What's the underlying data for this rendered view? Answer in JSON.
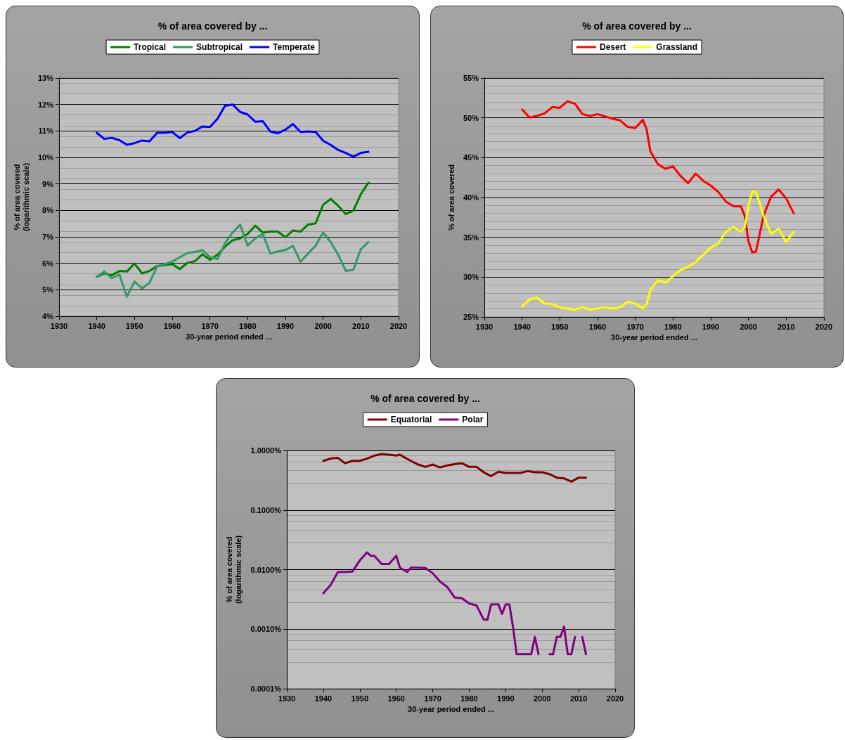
{
  "chart_data": [
    {
      "type": "line",
      "title": "% of area covered by ...",
      "xlabel": "30-year period ended ...",
      "ylabel": "% of area covered\n(logarithmic scale)",
      "xlim": [
        1930,
        2020
      ],
      "xticks": [
        1930,
        1940,
        1950,
        1960,
        1970,
        1980,
        1990,
        2000,
        2010,
        2020
      ],
      "ylim": [
        4,
        13
      ],
      "yticks": [
        {
          "value": 4,
          "label": "4%"
        },
        {
          "value": 5,
          "label": "5%"
        },
        {
          "value": 6,
          "label": "6%"
        },
        {
          "value": 7,
          "label": "7%"
        },
        {
          "value": 8,
          "label": "8%"
        },
        {
          "value": 9,
          "label": "9%"
        },
        {
          "value": 10,
          "label": "10%"
        },
        {
          "value": 11,
          "label": "11%"
        },
        {
          "value": 12,
          "label": "12%"
        },
        {
          "value": 13,
          "label": "13%"
        }
      ],
      "grid": "y",
      "legend": "top",
      "marker": "none",
      "line_style": "solid",
      "x": [
        1940,
        1942,
        1944,
        1946,
        1948,
        1950,
        1952,
        1954,
        1956,
        1958,
        1960,
        1962,
        1964,
        1966,
        1968,
        1970,
        1972,
        1974,
        1976,
        1978,
        1980,
        1982,
        1984,
        1986,
        1988,
        1990,
        1992,
        1994,
        1996,
        1998,
        2000,
        2002,
        2004,
        2006,
        2008,
        2010,
        2012
      ],
      "series": [
        {
          "name": "Tropical",
          "color": "#008000",
          "values": [
            5.49,
            5.62,
            5.55,
            5.71,
            5.69,
            5.99,
            5.62,
            5.71,
            5.9,
            5.93,
            5.97,
            5.78,
            6.01,
            6.08,
            6.34,
            6.13,
            6.32,
            6.63,
            6.87,
            6.94,
            7.11,
            7.42,
            7.16,
            7.2,
            7.2,
            6.98,
            7.24,
            7.2,
            7.46,
            7.51,
            8.21,
            8.43,
            8.17,
            7.86,
            7.99,
            8.61,
            9.05
          ]
        },
        {
          "name": "Subtropical",
          "color": "#339966",
          "values": [
            5.49,
            5.69,
            5.44,
            5.57,
            4.74,
            5.31,
            5.05,
            5.27,
            5.88,
            5.97,
            6.06,
            6.23,
            6.39,
            6.43,
            6.5,
            6.23,
            6.16,
            6.76,
            7.16,
            7.46,
            6.67,
            6.94,
            7.11,
            6.37,
            6.45,
            6.5,
            6.66,
            6.06,
            6.37,
            6.67,
            7.16,
            6.8,
            6.32,
            5.71,
            5.75,
            6.54,
            6.8
          ]
        },
        {
          "name": "Temperate",
          "color": "#0000ff",
          "values": [
            10.93,
            10.7,
            10.74,
            10.65,
            10.48,
            10.54,
            10.64,
            10.61,
            10.93,
            10.93,
            10.96,
            10.73,
            10.94,
            11.0,
            11.17,
            11.15,
            11.46,
            11.95,
            12.0,
            11.72,
            11.62,
            11.35,
            11.37,
            10.98,
            10.91,
            11.05,
            11.26,
            10.96,
            10.98,
            10.96,
            10.63,
            10.47,
            10.28,
            10.17,
            10.03,
            10.17,
            10.21
          ]
        }
      ]
    },
    {
      "type": "line",
      "title": "% of area covered by ...",
      "xlabel": "30-year period ended ...",
      "ylabel": "% of area covered",
      "xlim": [
        1930,
        2020
      ],
      "xticks": [
        1930,
        1940,
        1950,
        1960,
        1970,
        1980,
        1990,
        2000,
        2010,
        2020
      ],
      "ylim": [
        25,
        55
      ],
      "yticks": [
        {
          "value": 25,
          "label": "25%"
        },
        {
          "value": 30,
          "label": "30%"
        },
        {
          "value": 35,
          "label": "35%"
        },
        {
          "value": 40,
          "label": "40%"
        },
        {
          "value": 45,
          "label": "45%"
        },
        {
          "value": 50,
          "label": "50%"
        },
        {
          "value": 55,
          "label": "55%"
        }
      ],
      "grid": "y",
      "legend": "top",
      "marker": "none",
      "line_style": "solid",
      "x": [
        1940,
        1942,
        1944,
        1946,
        1948,
        1950,
        1952,
        1954,
        1956,
        1958,
        1960,
        1962,
        1964,
        1966,
        1968,
        1970,
        1972,
        1973,
        1974,
        1976,
        1978,
        1980,
        1982,
        1984,
        1986,
        1988,
        1990,
        1992,
        1994,
        1996,
        1998,
        1999,
        2000,
        2001,
        2002,
        2004,
        2006,
        2008,
        2010,
        2012
      ],
      "series": [
        {
          "name": "Desert",
          "color": "#ff0000",
          "values": [
            51.05,
            50.03,
            50.26,
            50.56,
            51.35,
            51.26,
            52.08,
            51.78,
            50.47,
            50.23,
            50.47,
            50.18,
            49.88,
            49.68,
            48.86,
            48.71,
            49.74,
            48.57,
            45.79,
            44.18,
            43.6,
            43.9,
            42.7,
            41.8,
            43.0,
            42.1,
            41.5,
            40.7,
            39.5,
            38.9,
            38.9,
            37.7,
            34.5,
            33.1,
            33.2,
            37.7,
            40.1,
            41.0,
            39.9,
            38.0
          ]
        },
        {
          "name": "Grassland",
          "color": "#ffff00",
          "values": [
            26.3,
            27.2,
            27.4,
            26.7,
            26.6,
            26.2,
            26.05,
            25.9,
            26.2,
            25.9,
            26.05,
            26.2,
            26.05,
            26.2,
            26.9,
            26.7,
            26.05,
            26.6,
            28.4,
            29.6,
            29.3,
            30.1,
            30.9,
            31.3,
            31.9,
            32.8,
            33.7,
            34.2,
            35.7,
            36.3,
            35.7,
            36.3,
            38.9,
            40.7,
            40.7,
            37.7,
            35.4,
            36.1,
            34.4,
            35.7
          ]
        }
      ]
    },
    {
      "type": "line",
      "title": "% of area covered by ...",
      "xlabel": "30-year period ended ...",
      "ylabel": "% of area covered\n(logarithmic scale)",
      "xlim": [
        1930,
        2020
      ],
      "xticks": [
        1930,
        1940,
        1950,
        1960,
        1970,
        1980,
        1990,
        2000,
        2010,
        2020
      ],
      "ylim": [
        0.0001,
        1
      ],
      "yticks": [
        {
          "value": 0.0001,
          "label": "0.0001%"
        },
        {
          "value": 0.001,
          "label": "0.0010%"
        },
        {
          "value": 0.01,
          "label": "0.0100%"
        },
        {
          "value": 0.1,
          "label": "0.1000%"
        },
        {
          "value": 1,
          "label": "1.0000%"
        }
      ],
      "log": "y",
      "grid": "y",
      "legend": "top",
      "marker": "none",
      "line_style": "solid",
      "series": [
        {
          "name": "Equatorial",
          "color": "#800000",
          "x": [
            1940,
            1942,
            1944,
            1946,
            1948,
            1950,
            1952,
            1954,
            1956,
            1958,
            1960,
            1961,
            1962,
            1964,
            1966,
            1968,
            1970,
            1972,
            1974,
            1976,
            1978,
            1980,
            1982,
            1984,
            1986,
            1988,
            1990,
            1992,
            1994,
            1996,
            1998,
            2000,
            2002,
            2004,
            2006,
            2008,
            2010,
            2012
          ],
          "values": [
            0.67,
            0.73,
            0.75,
            0.61,
            0.67,
            0.67,
            0.73,
            0.82,
            0.87,
            0.85,
            0.82,
            0.85,
            0.78,
            0.67,
            0.58,
            0.53,
            0.58,
            0.52,
            0.56,
            0.59,
            0.61,
            0.53,
            0.53,
            0.43,
            0.37,
            0.44,
            0.42,
            0.42,
            0.42,
            0.45,
            0.43,
            0.43,
            0.4,
            0.35,
            0.34,
            0.3,
            0.35,
            0.35
          ]
        },
        {
          "name": "Polar",
          "color": "#800080",
          "x": [
            1940,
            1942,
            1944,
            1946,
            1948,
            1950,
            1952,
            1953,
            1954,
            1956,
            1958,
            1960,
            1961,
            1963,
            1964,
            1966,
            1968,
            1970,
            1972,
            1974,
            1976,
            1978,
            1980,
            1982,
            1984,
            1985,
            1986,
            1988,
            1989,
            1990,
            1991,
            1992,
            1993,
            1995,
            1997,
            1998,
            1999,
            2000,
            2001,
            2002,
            2003,
            2004,
            2005,
            2006,
            2007,
            2008,
            2009,
            2010,
            2011,
            2012
          ],
          "values": [
            0.004,
            0.0055,
            0.0091,
            0.0091,
            0.0093,
            0.0142,
            0.0194,
            0.017,
            0.017,
            0.0124,
            0.0124,
            0.017,
            0.0108,
            0.0091,
            0.0108,
            0.0108,
            0.0106,
            0.0087,
            0.0063,
            0.0051,
            0.0034,
            0.0033,
            0.0027,
            0.0025,
            0.00144,
            0.00144,
            0.0026,
            0.0026,
            0.0018,
            0.0026,
            0.0026,
            0.0011,
            0.00038,
            0.00038,
            0.00038,
            0.00074,
            0.00038,
            null,
            null,
            0.00038,
            0.00038,
            0.00074,
            0.00074,
            0.0011,
            0.00038,
            0.00038,
            0.00074,
            null,
            0.00074,
            0.00038
          ]
        }
      ]
    }
  ]
}
